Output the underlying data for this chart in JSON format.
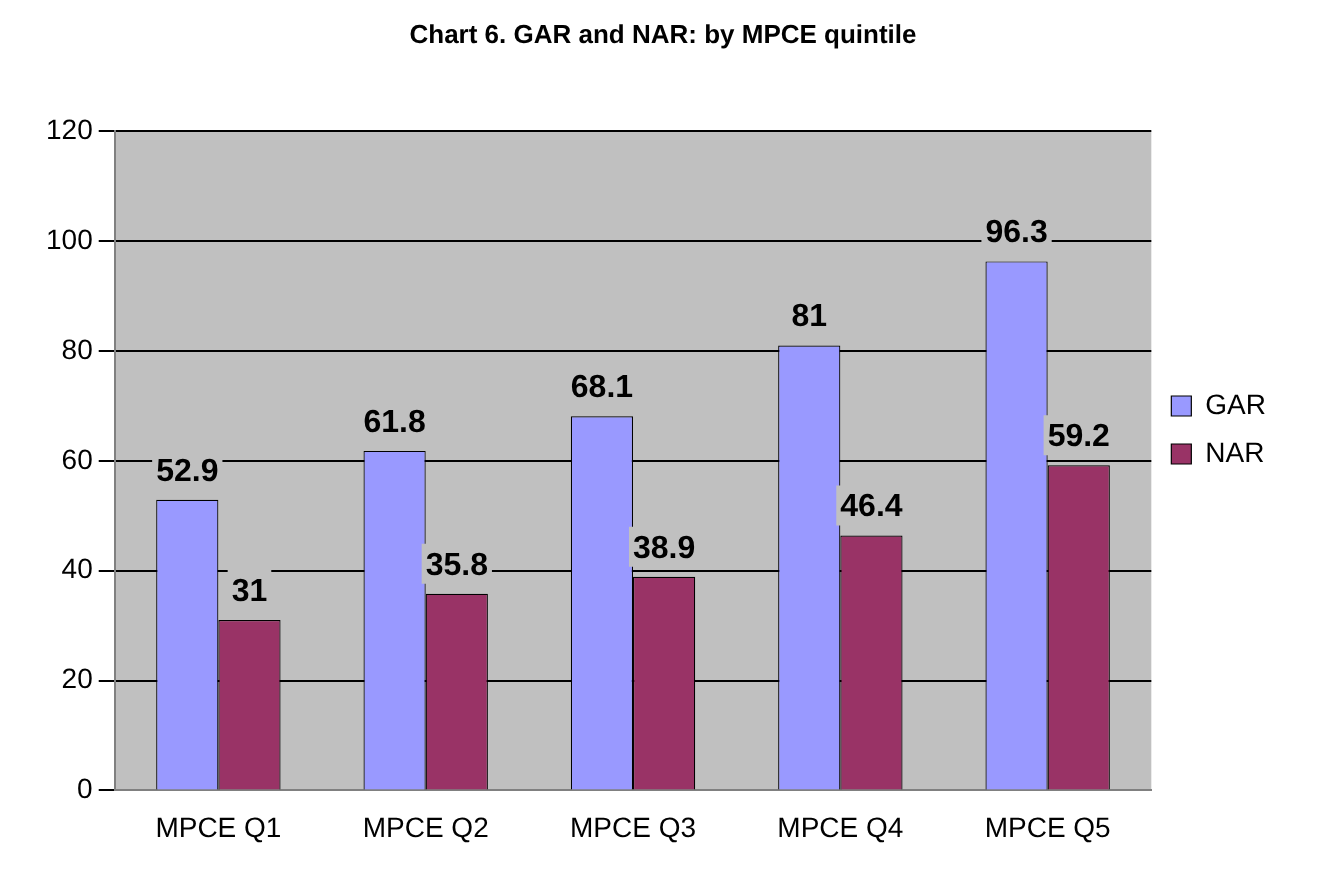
{
  "chart_data": {
    "type": "bar",
    "title": "Chart 6. GAR and NAR: by MPCE quintile",
    "categories": [
      "MPCE Q1",
      "MPCE Q2",
      "MPCE Q3",
      "MPCE Q4",
      "MPCE Q5"
    ],
    "series": [
      {
        "name": "GAR",
        "color": "#9999ff",
        "values": [
          52.9,
          61.8,
          68.1,
          81,
          96.3
        ]
      },
      {
        "name": "NAR",
        "color": "#993366",
        "values": [
          31,
          35.8,
          38.9,
          46.4,
          59.2
        ]
      }
    ],
    "ylim": [
      0,
      120
    ],
    "yticks": [
      0,
      20,
      40,
      60,
      80,
      100,
      120
    ],
    "grid": "y",
    "legend": "right",
    "data_labels": true
  }
}
